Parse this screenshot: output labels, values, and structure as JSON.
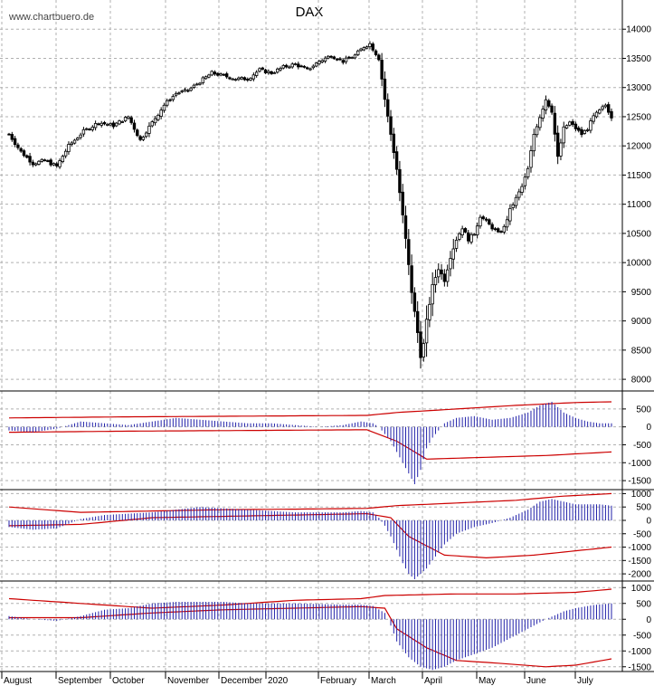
{
  "chart_data": {
    "type": "candlestick",
    "title": "DAX",
    "source": "www.chartbuero.de",
    "grid": true,
    "months": [
      "August",
      "September",
      "October",
      "November",
      "December",
      "2020",
      "February",
      "March",
      "April",
      "May",
      "June",
      "July"
    ],
    "price": {
      "ylim": [
        7800,
        14500
      ],
      "ticks": [
        14000,
        13500,
        13000,
        12500,
        12000,
        11500,
        11000,
        10500,
        10000,
        9500,
        9000,
        8500,
        8000
      ],
      "tick_labels": [
        "14000",
        "13500",
        "13000",
        "12500",
        "12000",
        "11500",
        "11000",
        "10500",
        "10000",
        "9500",
        "9000",
        "8500",
        "8000"
      ],
      "close_path": [
        [
          0,
          12200
        ],
        [
          4,
          11900
        ],
        [
          8,
          11700
        ],
        [
          12,
          11750
        ],
        [
          16,
          11650
        ],
        [
          20,
          12000
        ],
        [
          25,
          12250
        ],
        [
          30,
          12400
        ],
        [
          35,
          12350
        ],
        [
          40,
          12500
        ],
        [
          44,
          12100
        ],
        [
          48,
          12400
        ],
        [
          52,
          12700
        ],
        [
          56,
          12900
        ],
        [
          60,
          12950
        ],
        [
          64,
          13100
        ],
        [
          68,
          13250
        ],
        [
          72,
          13200
        ],
        [
          76,
          13150
        ],
        [
          80,
          13150
        ],
        [
          84,
          13300
        ],
        [
          88,
          13250
        ],
        [
          92,
          13350
        ],
        [
          96,
          13400
        ],
        [
          100,
          13300
        ],
        [
          104,
          13450
        ],
        [
          108,
          13550
        ],
        [
          112,
          13450
        ],
        [
          116,
          13550
        ],
        [
          119,
          13700
        ],
        [
          121,
          13750
        ],
        [
          124,
          13500
        ],
        [
          126,
          12800
        ],
        [
          128,
          12200
        ],
        [
          130,
          11600
        ],
        [
          132,
          10800
        ],
        [
          133,
          10400
        ],
        [
          135,
          9500
        ],
        [
          137,
          8800
        ],
        [
          138,
          8400
        ],
        [
          139,
          8600
        ],
        [
          140,
          9000
        ],
        [
          142,
          9600
        ],
        [
          144,
          9900
        ],
        [
          146,
          9700
        ],
        [
          148,
          10100
        ],
        [
          150,
          10400
        ],
        [
          152,
          10600
        ],
        [
          154,
          10400
        ],
        [
          156,
          10500
        ],
        [
          158,
          10800
        ],
        [
          160,
          10700
        ],
        [
          162,
          10600
        ],
        [
          164,
          10500
        ],
        [
          166,
          10600
        ],
        [
          168,
          10900
        ],
        [
          170,
          11100
        ],
        [
          172,
          11300
        ],
        [
          174,
          11600
        ],
        [
          176,
          12200
        ],
        [
          178,
          12500
        ],
        [
          180,
          12800
        ],
        [
          182,
          12600
        ],
        [
          184,
          11800
        ],
        [
          186,
          12300
        ],
        [
          188,
          12400
        ],
        [
          190,
          12300
        ],
        [
          192,
          12200
        ],
        [
          194,
          12300
        ],
        [
          196,
          12500
        ],
        [
          198,
          12600
        ],
        [
          200,
          12700
        ],
        [
          202,
          12500
        ]
      ]
    },
    "indicator_1": {
      "ylim": [
        -1650,
        800
      ],
      "ticks": [
        500,
        0,
        -500,
        -1000,
        -1500
      ],
      "tick_labels": [
        "500",
        "0",
        "-500",
        "-1000",
        "-1500"
      ],
      "histogram": [
        [
          0,
          -100
        ],
        [
          8,
          -150
        ],
        [
          16,
          -50
        ],
        [
          24,
          150
        ],
        [
          32,
          100
        ],
        [
          40,
          50
        ],
        [
          48,
          150
        ],
        [
          56,
          250
        ],
        [
          64,
          200
        ],
        [
          72,
          150
        ],
        [
          80,
          100
        ],
        [
          88,
          100
        ],
        [
          96,
          50
        ],
        [
          104,
          0
        ],
        [
          112,
          50
        ],
        [
          118,
          150
        ],
        [
          122,
          100
        ],
        [
          124,
          0
        ],
        [
          126,
          -200
        ],
        [
          128,
          -400
        ],
        [
          130,
          -700
        ],
        [
          132,
          -1000
        ],
        [
          134,
          -1300
        ],
        [
          136,
          -1600
        ],
        [
          138,
          -1200
        ],
        [
          140,
          -600
        ],
        [
          142,
          -300
        ],
        [
          146,
          100
        ],
        [
          150,
          250
        ],
        [
          156,
          300
        ],
        [
          162,
          200
        ],
        [
          168,
          250
        ],
        [
          174,
          400
        ],
        [
          178,
          600
        ],
        [
          182,
          700
        ],
        [
          186,
          400
        ],
        [
          190,
          250
        ],
        [
          194,
          150
        ],
        [
          198,
          100
        ],
        [
          202,
          100
        ]
      ],
      "upper_band": [
        [
          0,
          250
        ],
        [
          40,
          280
        ],
        [
          80,
          300
        ],
        [
          120,
          320
        ],
        [
          130,
          400
        ],
        [
          150,
          500
        ],
        [
          170,
          600
        ],
        [
          190,
          680
        ],
        [
          202,
          700
        ]
      ],
      "lower_band": [
        [
          0,
          -150
        ],
        [
          40,
          -120
        ],
        [
          80,
          -100
        ],
        [
          120,
          -80
        ],
        [
          130,
          -400
        ],
        [
          140,
          -900
        ],
        [
          160,
          -850
        ],
        [
          180,
          -800
        ],
        [
          202,
          -700
        ]
      ]
    },
    "indicator_2": {
      "ylim": [
        -2200,
        1150
      ],
      "ticks": [
        1000,
        500,
        0,
        -500,
        -1000,
        -1500,
        -2000
      ],
      "tick_labels": [
        "1000",
        "500",
        "0",
        "-500",
        "-1000",
        "-1500",
        "-2000"
      ],
      "histogram": [
        [
          0,
          -250
        ],
        [
          8,
          -350
        ],
        [
          16,
          -300
        ],
        [
          24,
          50
        ],
        [
          32,
          200
        ],
        [
          40,
          250
        ],
        [
          48,
          300
        ],
        [
          56,
          400
        ],
        [
          64,
          500
        ],
        [
          72,
          450
        ],
        [
          80,
          400
        ],
        [
          88,
          350
        ],
        [
          96,
          300
        ],
        [
          104,
          300
        ],
        [
          112,
          300
        ],
        [
          118,
          350
        ],
        [
          122,
          300
        ],
        [
          124,
          100
        ],
        [
          126,
          -200
        ],
        [
          128,
          -600
        ],
        [
          130,
          -1100
        ],
        [
          132,
          -1600
        ],
        [
          134,
          -2000
        ],
        [
          136,
          -2200
        ],
        [
          140,
          -1800
        ],
        [
          146,
          -900
        ],
        [
          150,
          -500
        ],
        [
          156,
          -250
        ],
        [
          162,
          -100
        ],
        [
          168,
          100
        ],
        [
          174,
          400
        ],
        [
          178,
          700
        ],
        [
          182,
          800
        ],
        [
          186,
          700
        ],
        [
          190,
          600
        ],
        [
          194,
          600
        ],
        [
          198,
          600
        ],
        [
          202,
          550
        ]
      ],
      "upper_band": [
        [
          0,
          500
        ],
        [
          24,
          300
        ],
        [
          48,
          350
        ],
        [
          72,
          400
        ],
        [
          96,
          420
        ],
        [
          120,
          450
        ],
        [
          130,
          550
        ],
        [
          150,
          650
        ],
        [
          170,
          750
        ],
        [
          185,
          900
        ],
        [
          202,
          1000
        ]
      ],
      "lower_band": [
        [
          0,
          -200
        ],
        [
          24,
          -150
        ],
        [
          48,
          100
        ],
        [
          72,
          150
        ],
        [
          96,
          200
        ],
        [
          120,
          250
        ],
        [
          128,
          100
        ],
        [
          134,
          -600
        ],
        [
          146,
          -1300
        ],
        [
          160,
          -1400
        ],
        [
          176,
          -1300
        ],
        [
          202,
          -1000
        ]
      ]
    },
    "indicator_3": {
      "ylim": [
        -1650,
        1150
      ],
      "ticks": [
        1000,
        500,
        0,
        -500,
        -1000,
        -1500
      ],
      "tick_labels": [
        "1000",
        "500",
        "0",
        "-500",
        "-1000",
        "-1500"
      ],
      "histogram": [
        [
          0,
          100
        ],
        [
          8,
          0
        ],
        [
          16,
          -50
        ],
        [
          24,
          100
        ],
        [
          32,
          300
        ],
        [
          40,
          350
        ],
        [
          48,
          500
        ],
        [
          56,
          550
        ],
        [
          64,
          550
        ],
        [
          72,
          550
        ],
        [
          80,
          500
        ],
        [
          88,
          500
        ],
        [
          96,
          500
        ],
        [
          104,
          480
        ],
        [
          112,
          460
        ],
        [
          118,
          460
        ],
        [
          122,
          420
        ],
        [
          126,
          200
        ],
        [
          128,
          -200
        ],
        [
          130,
          -700
        ],
        [
          134,
          -1200
        ],
        [
          138,
          -1500
        ],
        [
          142,
          -1600
        ],
        [
          146,
          -1500
        ],
        [
          150,
          -1300
        ],
        [
          156,
          -1100
        ],
        [
          162,
          -900
        ],
        [
          168,
          -600
        ],
        [
          174,
          -300
        ],
        [
          180,
          0
        ],
        [
          186,
          250
        ],
        [
          190,
          350
        ],
        [
          196,
          450
        ],
        [
          202,
          500
        ]
      ],
      "upper_band": [
        [
          0,
          650
        ],
        [
          24,
          500
        ],
        [
          48,
          350
        ],
        [
          72,
          450
        ],
        [
          96,
          600
        ],
        [
          118,
          650
        ],
        [
          126,
          750
        ],
        [
          150,
          800
        ],
        [
          170,
          800
        ],
        [
          190,
          850
        ],
        [
          202,
          950
        ]
      ],
      "lower_band": [
        [
          0,
          50
        ],
        [
          24,
          50
        ],
        [
          48,
          200
        ],
        [
          72,
          300
        ],
        [
          96,
          350
        ],
        [
          118,
          400
        ],
        [
          126,
          350
        ],
        [
          130,
          -300
        ],
        [
          140,
          -900
        ],
        [
          150,
          -1300
        ],
        [
          166,
          -1400
        ],
        [
          180,
          -1500
        ],
        [
          190,
          -1450
        ],
        [
          202,
          -1250
        ]
      ]
    }
  }
}
